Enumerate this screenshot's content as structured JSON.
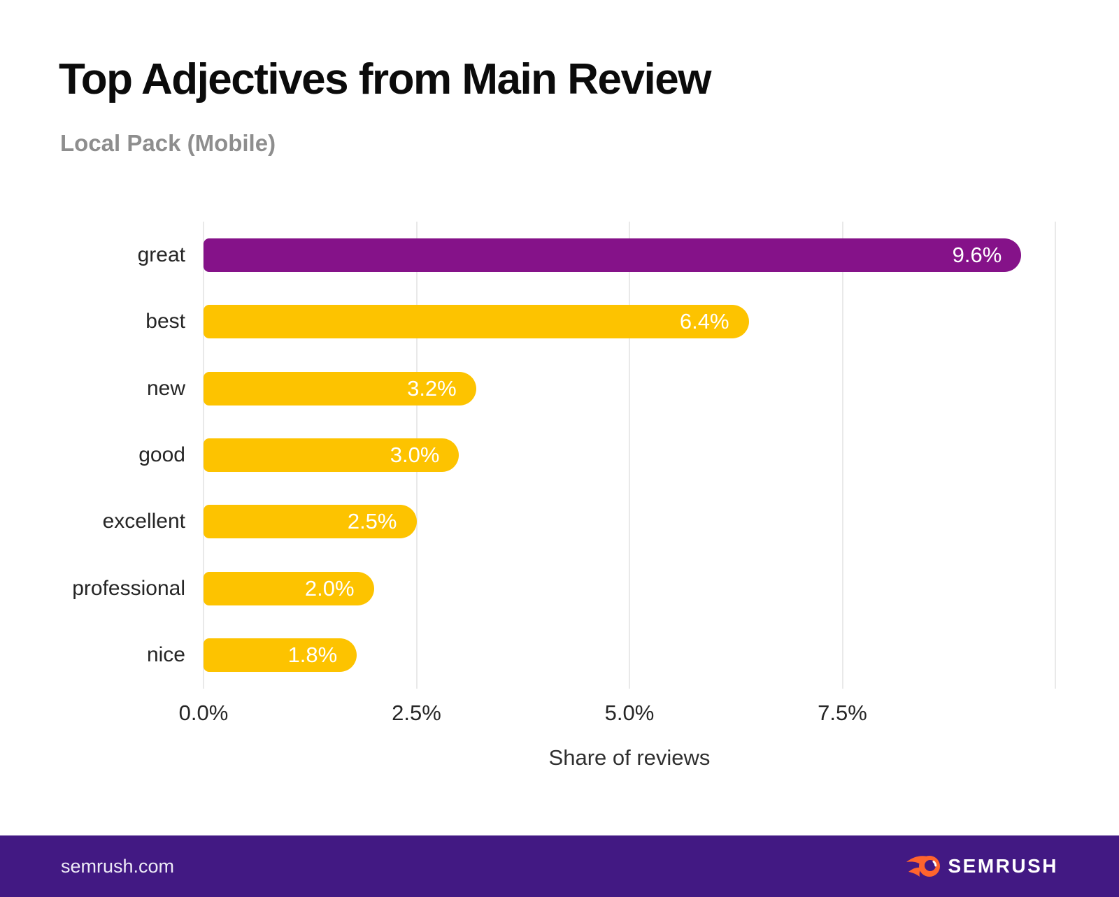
{
  "title": "Top Adjectives from Main Review",
  "subtitle": "Local Pack (Mobile)",
  "chart_data": {
    "type": "bar",
    "orientation": "horizontal",
    "title": "Top Adjectives from Main Review",
    "subtitle": "Local Pack (Mobile)",
    "categories": [
      "great",
      "best",
      "new",
      "good",
      "excellent",
      "professional",
      "nice"
    ],
    "values": [
      9.6,
      6.4,
      3.2,
      3.0,
      2.5,
      2.0,
      1.8
    ],
    "value_labels": [
      "9.6%",
      "6.4%",
      "3.2%",
      "3.0%",
      "2.5%",
      "2.0%",
      "1.8%"
    ],
    "bar_colors": [
      "#851289",
      "#FDC300",
      "#FDC300",
      "#FDC300",
      "#FDC300",
      "#FDC300",
      "#FDC300"
    ],
    "xlabel": "Share of reviews",
    "x_ticks": [
      {
        "label": "0.0%",
        "pos": 0
      },
      {
        "label": "2.5%",
        "pos": 25
      },
      {
        "label": "5.0%",
        "pos": 50
      },
      {
        "label": "7.5%",
        "pos": 75
      }
    ],
    "grid_positions": [
      0,
      25,
      50,
      75,
      100
    ],
    "xlim": [
      0,
      10
    ],
    "legend": "none",
    "grid": "vertical-only"
  },
  "colors": {
    "background": "#FFFFFF",
    "highlight_bar": "#851289",
    "default_bar": "#FDC300",
    "gridline": "#E9E9E9",
    "title_text": "#0B0B0B",
    "subtitle_text": "#8E8E8E",
    "label_text": "#262626",
    "value_text": "#FFFFFF",
    "footer_bg": "#421983",
    "footer_text": "#EDEAF6",
    "logo_orange": "#FF642D"
  },
  "footer": {
    "site": "semrush.com",
    "logo_text": "SEMRUSH"
  }
}
